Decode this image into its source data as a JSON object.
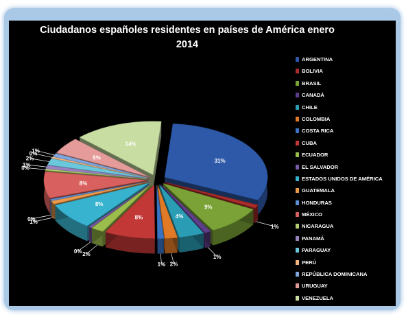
{
  "chart_data": {
    "type": "pie",
    "title": "Ciudadanos españoles residentes en países de América enero 2014",
    "legend_position": "right",
    "categories": [
      "ARGENTINA",
      "BOLIVIA",
      "BRASIL",
      "CANADÁ",
      "CHILE",
      "COLOMBIA",
      "COSTA RICA",
      "CUBA",
      "ECUADOR",
      "EL SALVADOR",
      "ESTADOS UNIDOS DE AMÉRICA",
      "GUATEMALA",
      "HONDURAS",
      "MÉXICO",
      "NICARAGUA",
      "PANAMÁ",
      "PARAGUAY",
      "PERÚ",
      "REPÚBLICA DOMINICANA",
      "URUGUAY",
      "VENEZUELA"
    ],
    "values": [
      31,
      1,
      9,
      1,
      4,
      2,
      1,
      8,
      2,
      0,
      8,
      1,
      0,
      8,
      0,
      1,
      2,
      0,
      1,
      5,
      14
    ],
    "data_labels": [
      "31%",
      "1%",
      "9%",
      "1%",
      "4%",
      "2%",
      "1%",
      "8%",
      "2%",
      "0%",
      "8%",
      "1%",
      "0%",
      "8%",
      "0%",
      "1%",
      "2%",
      "0%",
      "1%",
      "5%",
      "14%"
    ],
    "colors": [
      "#2d59a8",
      "#a82c2a",
      "#7aa236",
      "#5e3d8a",
      "#2a9db5",
      "#e07a26",
      "#3a73c4",
      "#c23836",
      "#9bbd4c",
      "#7a5aa5",
      "#38b3cf",
      "#ec9a4a",
      "#5b8ed3",
      "#d8605e",
      "#b3cf6e",
      "#9a82c0",
      "#6bc7db",
      "#f2b47e",
      "#7fa7de",
      "#e59b99",
      "#c8ddA2"
    ]
  }
}
